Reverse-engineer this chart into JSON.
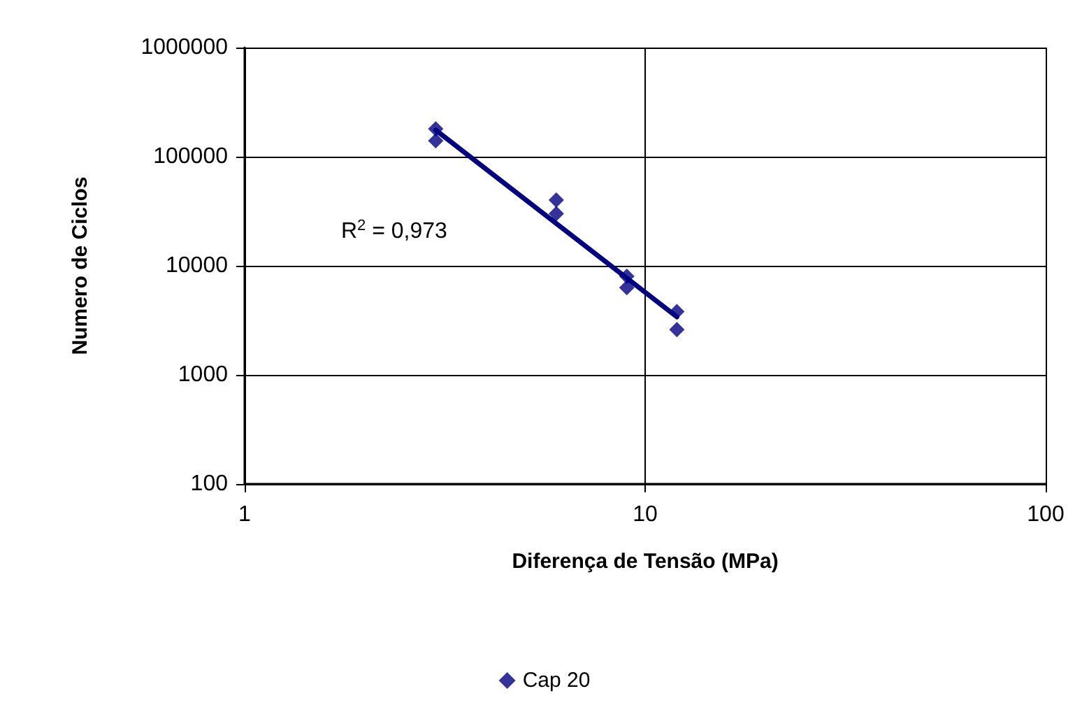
{
  "chart_data": {
    "type": "scatter",
    "xlabel": "Diferença de Tensão (MPa)",
    "ylabel": "Numero de Ciclos",
    "log": "xy",
    "xlim": [
      1,
      100
    ],
    "xticks": [
      1,
      10,
      100
    ],
    "ylim": [
      100,
      1000000
    ],
    "yticks": [
      100,
      1000,
      10000,
      100000,
      1000000
    ],
    "grid": true,
    "legend": "bottom",
    "marker": "diamond",
    "annotations": [
      "R$^{2}$ = 0,973"
    ],
    "series": [
      {
        "name": "Cap 20",
        "color": "#000080",
        "x": [
          3,
          3,
          6,
          6,
          9,
          9,
          12,
          12
        ],
        "values": [
          180000,
          140000,
          40000,
          30000,
          8000,
          6300,
          3800,
          2600
        ]
      },
      {
        "type": "line",
        "color": "#000080",
        "line_style": "solid",
        "marker": "none",
        "x": [
          3,
          12
        ],
        "values": [
          175000,
          3400
        ]
      }
    ]
  }
}
